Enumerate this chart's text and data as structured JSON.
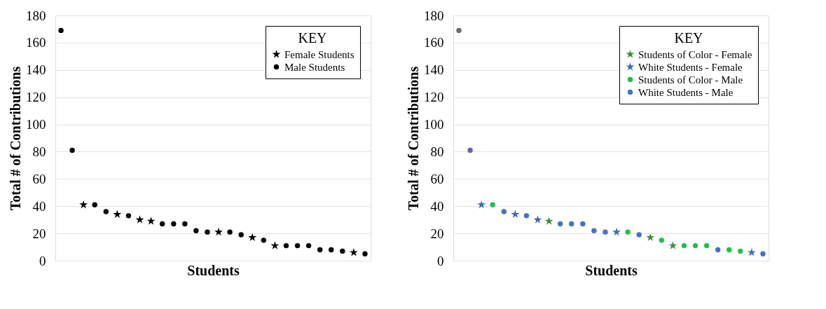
{
  "chart_data": [
    {
      "type": "scatter",
      "xlabel": "Students",
      "ylabel": "Total # of Contributions",
      "legend_title": "KEY",
      "legend": "top right",
      "grid": "y",
      "tick_labels": "y",
      "ylim": [
        0,
        180
      ],
      "yticks": [
        0,
        20,
        40,
        60,
        80,
        100,
        120,
        140,
        160,
        180
      ],
      "categories": [
        null,
        null,
        null,
        null,
        null,
        null,
        null,
        null,
        null,
        null,
        null,
        null,
        null,
        null,
        null,
        null,
        null,
        null,
        null,
        null,
        null,
        null,
        null,
        null,
        null,
        null,
        null,
        null
      ],
      "series": [
        {
          "name": "Female Students",
          "color": "#000000",
          "marker": "star",
          "values": [
            null,
            null,
            41,
            null,
            null,
            34,
            null,
            30,
            29,
            null,
            null,
            null,
            null,
            null,
            21,
            null,
            null,
            17,
            null,
            11,
            null,
            null,
            null,
            null,
            null,
            null,
            6,
            null
          ]
        },
        {
          "name": "Male Students",
          "color": "#000000",
          "marker": "circle",
          "values": [
            169,
            81,
            null,
            41,
            36,
            null,
            33,
            null,
            null,
            27,
            27,
            27,
            22,
            21,
            null,
            21,
            19,
            null,
            15,
            null,
            11,
            11,
            11,
            8,
            8,
            7,
            null,
            5
          ]
        }
      ]
    },
    {
      "type": "scatter",
      "xlabel": "Students",
      "ylabel": "Total # of Contributions",
      "legend_title": "KEY",
      "legend": "top right",
      "grid": "y",
      "tick_labels": "y",
      "ylim": [
        0,
        180
      ],
      "yticks": [
        0,
        20,
        40,
        60,
        80,
        100,
        120,
        140,
        160,
        180
      ],
      "categories": [
        null,
        null,
        null,
        null,
        null,
        null,
        null,
        null,
        null,
        null,
        null,
        null,
        null,
        null,
        null,
        null,
        null,
        null,
        null,
        null,
        null,
        null,
        null,
        null,
        null,
        null,
        null,
        null
      ],
      "series": [
        {
          "name": "Students of Color - Female",
          "color": "#3a8f3a",
          "marker": "star",
          "values": [
            null,
            null,
            null,
            null,
            null,
            null,
            null,
            null,
            29,
            null,
            null,
            null,
            null,
            null,
            null,
            null,
            null,
            17,
            null,
            11,
            null,
            null,
            null,
            null,
            null,
            null,
            null,
            null
          ]
        },
        {
          "name": "White Students - Female",
          "color": "#3a6db5",
          "marker": "star",
          "values": [
            null,
            null,
            41,
            null,
            null,
            34,
            null,
            30,
            null,
            null,
            null,
            null,
            null,
            null,
            21,
            null,
            null,
            null,
            null,
            null,
            null,
            null,
            null,
            null,
            null,
            null,
            6,
            null
          ]
        },
        {
          "name": "Students of Color - Male",
          "color": "#1fbf4a",
          "marker": "circle",
          "values": [
            null,
            null,
            null,
            41,
            null,
            null,
            null,
            null,
            null,
            null,
            null,
            null,
            null,
            null,
            null,
            21,
            null,
            null,
            15,
            null,
            11,
            11,
            11,
            null,
            8,
            7,
            null,
            null
          ]
        },
        {
          "name": "White Students - Male",
          "color": "#4472c4",
          "marker": "circle",
          "colors": [
            "#6b6b6b",
            "#6a5fb0",
            null,
            null,
            "#4472c4",
            null,
            "#4472c4",
            null,
            null,
            "#4472c4",
            "#4472c4",
            "#4472c4",
            "#4472c4",
            "#4472c4",
            null,
            null,
            "#4472c4",
            null,
            null,
            null,
            null,
            null,
            null,
            "#4472c4",
            null,
            null,
            null,
            "#4472c4"
          ],
          "values": [
            169,
            81,
            null,
            null,
            36,
            null,
            33,
            null,
            null,
            27,
            27,
            27,
            22,
            21,
            null,
            null,
            19,
            null,
            null,
            null,
            null,
            null,
            null,
            8,
            null,
            null,
            null,
            5
          ]
        }
      ]
    }
  ]
}
